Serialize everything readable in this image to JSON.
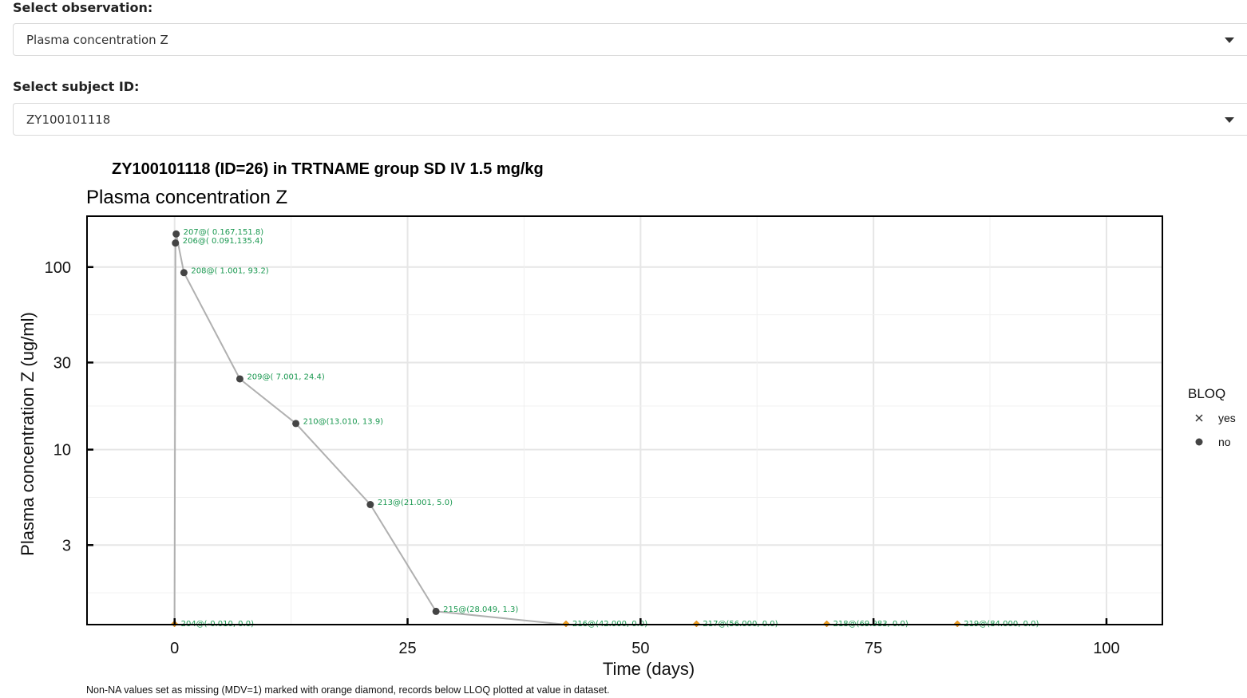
{
  "controls": {
    "observation": {
      "label": "Select observation:",
      "value": "Plasma concentration Z"
    },
    "subject": {
      "label": "Select subject ID:",
      "value": "ZY100101118"
    }
  },
  "chart_data": {
    "type": "line",
    "title": "ZY100101118 (ID=26) in TRTNAME group SD IV 1.5 mg/kg",
    "subtitle": "Plasma concentration Z",
    "xlabel": "Time (days)",
    "ylabel": "Plasma concentration Z (ug/ml)",
    "y_scale": "log",
    "xlim": [
      -9.4,
      106
    ],
    "ylim": [
      1.1,
      190
    ],
    "x_ticks": [
      0,
      25,
      50,
      75,
      100
    ],
    "x_tick_labels": [
      "0",
      "25",
      "50",
      "75",
      "100"
    ],
    "y_ticks": [
      100,
      30,
      10,
      3
    ],
    "y_tick_labels": [
      "100",
      "30",
      "10",
      "3"
    ],
    "legend": {
      "title": "BLOQ",
      "position": "right",
      "entries": [
        {
          "label": "yes",
          "marker": "x"
        },
        {
          "label": "no",
          "marker": "circle"
        }
      ]
    },
    "line_color": "#b0b0b0",
    "point_color": "#444444",
    "label_color": "#1a9850",
    "missing_color": "#f0a020",
    "points": [
      {
        "x": 0.091,
        "y": 135.4,
        "label": "206@( 0.091,135.4)"
      },
      {
        "x": 0.167,
        "y": 151.8,
        "label": "207@( 0.167,151.8)"
      },
      {
        "x": 1.001,
        "y": 93.2,
        "label": "208@( 1.001, 93.2)"
      },
      {
        "x": 7.001,
        "y": 24.4,
        "label": "209@( 7.001, 24.4)"
      },
      {
        "x": 13.01,
        "y": 13.9,
        "label": "210@(13.010, 13.9)"
      },
      {
        "x": 21.001,
        "y": 5.0,
        "label": "213@(21.001,  5.0)"
      },
      {
        "x": 28.049,
        "y": 1.3,
        "label": "215@(28.049,  1.3)"
      }
    ],
    "missing_points": [
      {
        "x": -0.01,
        "y": 0.0,
        "label": "204@(-0.010,  0.0)"
      },
      {
        "x": 42.0,
        "y": 0.0,
        "label": "216@(42.000,  0.0)"
      },
      {
        "x": 56.0,
        "y": 0.0,
        "label": "217@(56.000,  0.0)"
      },
      {
        "x": 69.983,
        "y": 0.0,
        "label": "218@(69.983,  0.0)"
      },
      {
        "x": 84.0,
        "y": 0.0,
        "label": "219@(84.000,  0.0)"
      }
    ],
    "caption": "Non-NA values set as missing (MDV=1) marked with orange diamond, records below LLOQ plotted at value in dataset."
  }
}
